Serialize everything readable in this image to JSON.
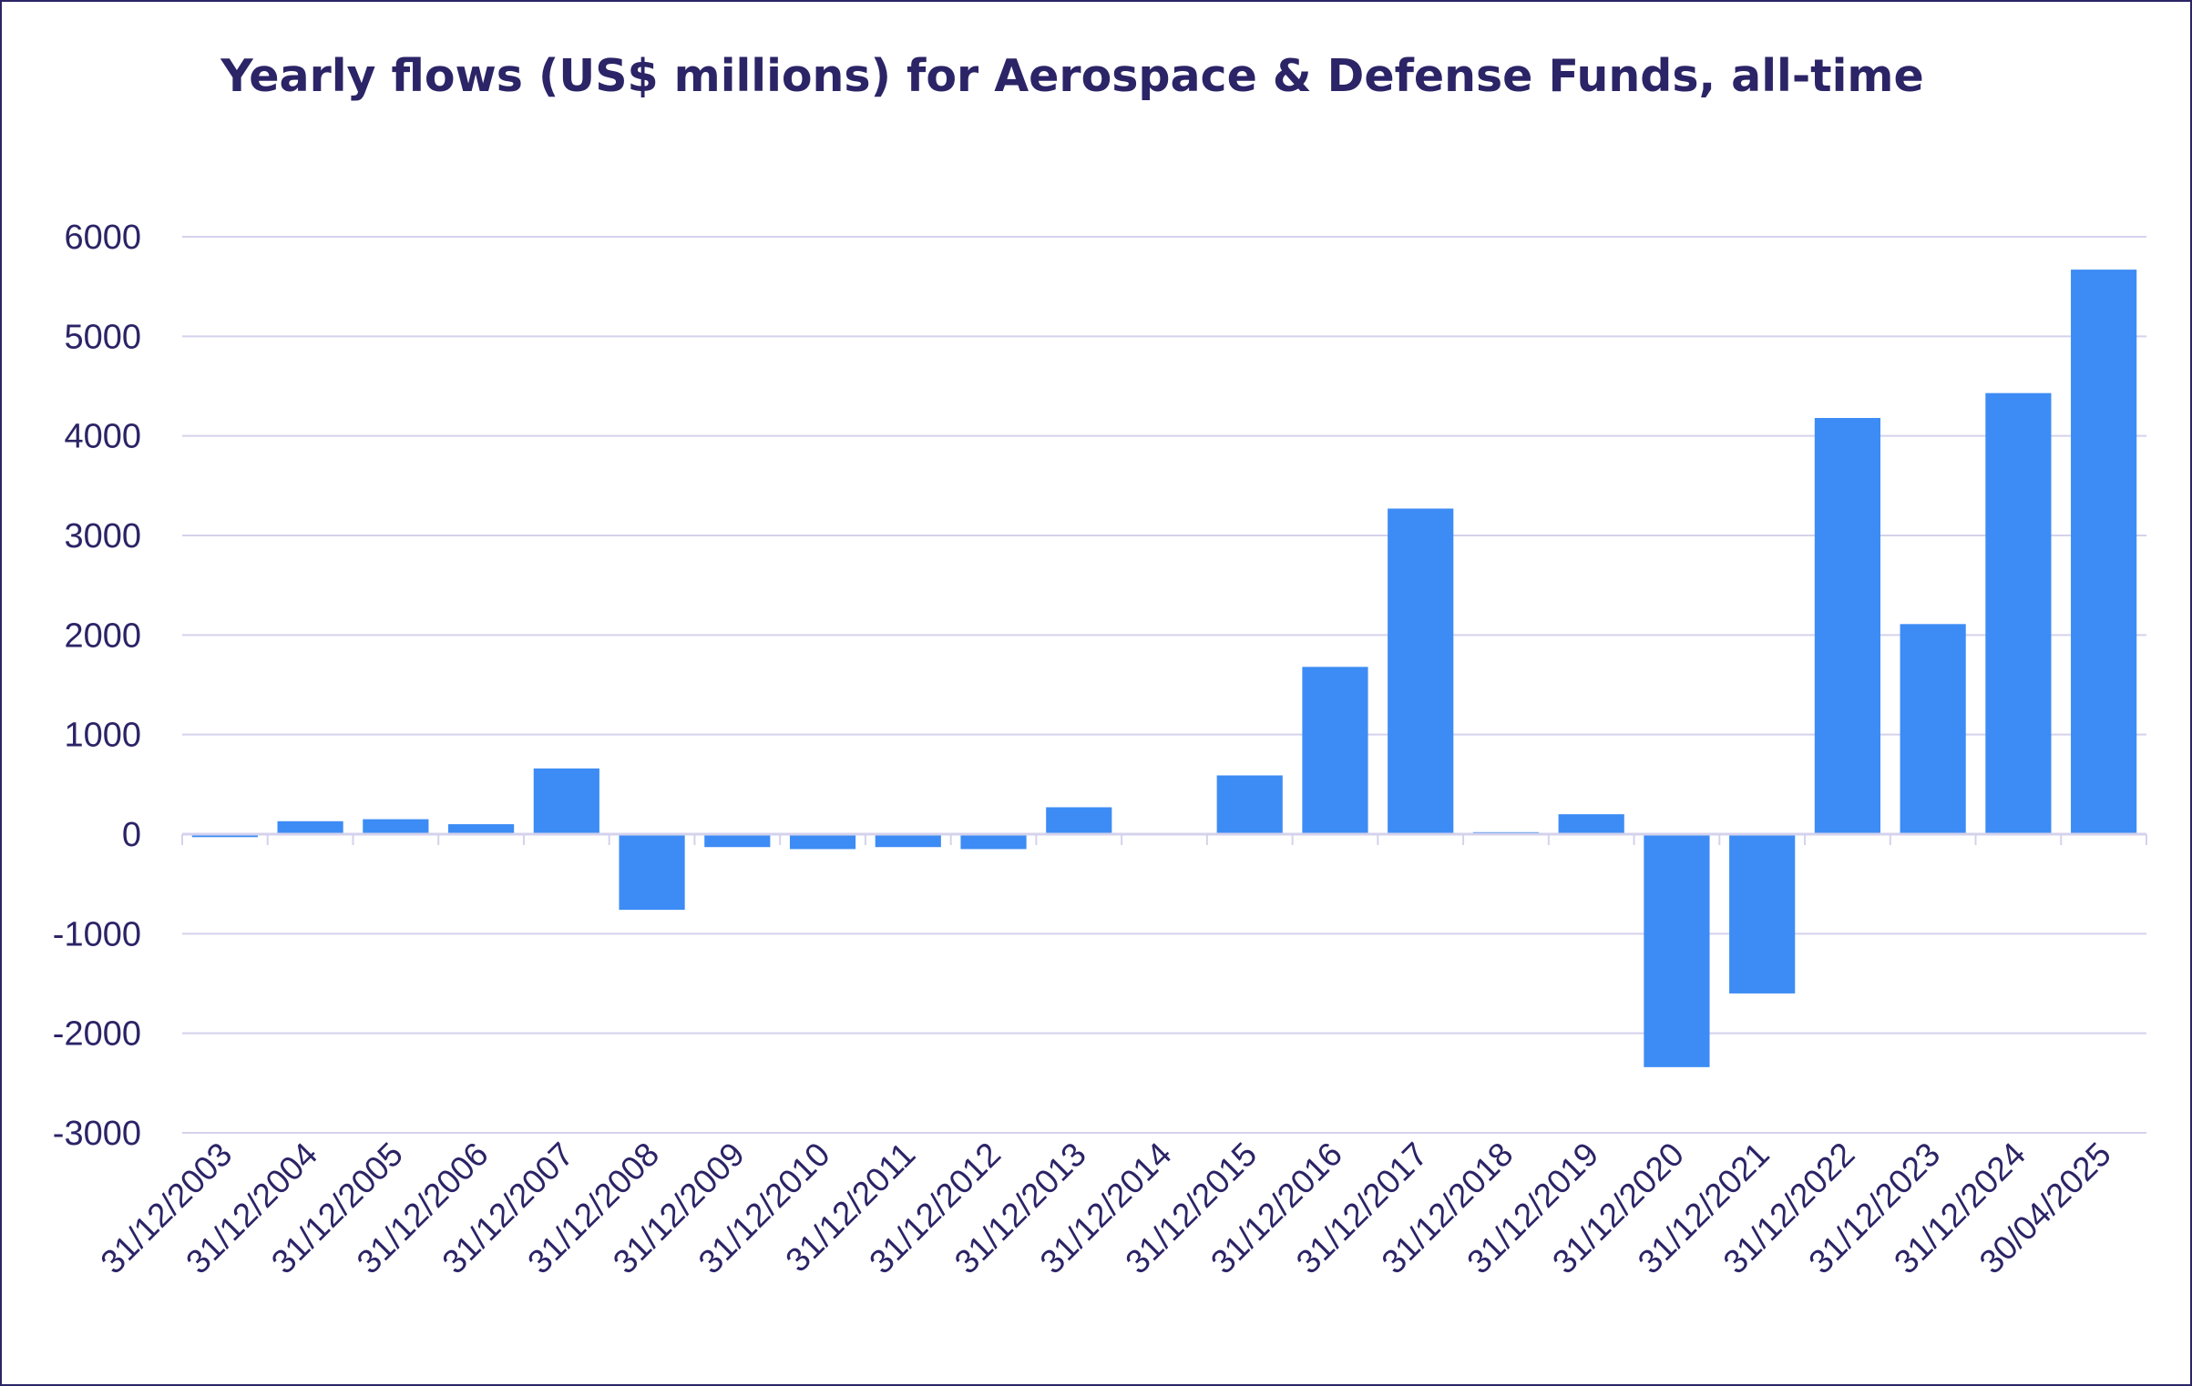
{
  "chart_data": {
    "type": "bar",
    "title": "Yearly flows (US$ millions) for Aerospace & Defense Funds, all-time",
    "xlabel": "",
    "ylabel": "",
    "ylim": [
      -3000,
      6000
    ],
    "yticks": [
      6000,
      5000,
      4000,
      3000,
      2000,
      1000,
      0,
      -1000,
      -2000,
      -3000
    ],
    "grid": true,
    "colors": {
      "bar": "#3d8cf5",
      "grid": "#d4d2ec",
      "text": "#2b2466"
    },
    "categories": [
      "31/12/2003",
      "31/12/2004",
      "31/12/2005",
      "31/12/2006",
      "31/12/2007",
      "31/12/2008",
      "31/12/2009",
      "31/12/2010",
      "31/12/2011",
      "31/12/2012",
      "31/12/2013",
      "31/12/2014",
      "31/12/2015",
      "31/12/2016",
      "31/12/2017",
      "31/12/2018",
      "31/12/2019",
      "31/12/2020",
      "31/12/2021",
      "31/12/2022",
      "31/12/2023",
      "31/12/2024",
      "30/04/2025"
    ],
    "values": [
      -30,
      130,
      150,
      100,
      660,
      -760,
      -130,
      -150,
      -130,
      -150,
      270,
      0,
      590,
      1680,
      3270,
      20,
      200,
      -2340,
      -1600,
      4180,
      2110,
      4430,
      5670
    ]
  }
}
